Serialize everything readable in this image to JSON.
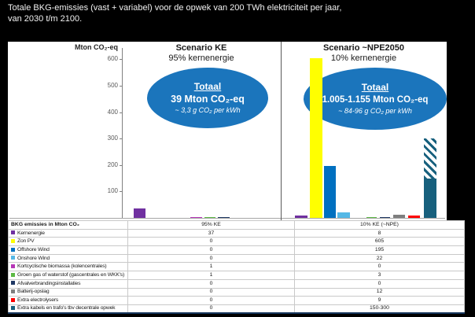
{
  "title": {
    "line1": "Totale BKG-emissies (vast + variabel) voor de opwek van 200 TWh elektriciteit per jaar,",
    "line2": "van 2030 t/m 2100."
  },
  "chart_data": {
    "type": "bar",
    "ylabel": "Mton CO₂-eq",
    "ylim": [
      0,
      620
    ],
    "yticks": [
      100,
      200,
      300,
      400,
      500,
      600
    ],
    "grid": false,
    "legend_position": "table-below",
    "panels": [
      {
        "name": "Scenario KE",
        "subtitle": "95% kernenergie",
        "total_label": "Totaal",
        "total_value": "39 Mton CO₂-eq",
        "per_kwh": "~ 3,3 g CO₂ per kWh"
      },
      {
        "name": "Scenario ~NPE2050",
        "subtitle": "10% kernenergie",
        "total_label": "Totaal",
        "total_value": "1.005-1.155 Mton CO₂-eq",
        "per_kwh": "~ 84-96 g CO₂ per kWh"
      }
    ],
    "categories": [
      "Kernenergie",
      "Zon PV",
      "Offshore Wind",
      "Onshore Wind",
      "Kortcyclische biomassa (kolencentrales)",
      "Groen gas of waterstof (gascentrales en WKK's)",
      "Afvalverbrandingsinstallaties",
      "Batterij-opslag",
      "Extra electrolysers",
      "Extra kabels en trafo's tbv decentrale opwek"
    ],
    "colors": [
      "#7030A0",
      "#FFFF00",
      "#0070C0",
      "#55B8E6",
      "#B636B6",
      "#5CB944",
      "#1F3864",
      "#7F7F7F",
      "#FF0000",
      "#17607D"
    ],
    "series": [
      {
        "name": "95% KE",
        "values": [
          37,
          0,
          0,
          0,
          1,
          1,
          0,
          0,
          0,
          0
        ]
      },
      {
        "name": "10% KE (~NPE)",
        "values": [
          8,
          605,
          195,
          22,
          0,
          3,
          0,
          12,
          9,
          150
        ],
        "extra_kabels_max": 300
      }
    ]
  },
  "table": {
    "header": [
      "BKG emissies in Mton CO₂",
      "95% KE",
      "10% KE (~NPE)"
    ],
    "rows": [
      {
        "label": "Kernenergie",
        "color": "#7030A0",
        "ke": "37",
        "npe": "8"
      },
      {
        "label": "Zon PV",
        "color": "#FFFF00",
        "ke": "0",
        "npe": "605"
      },
      {
        "label": "Offshore Wind",
        "color": "#0070C0",
        "ke": "0",
        "npe": "195"
      },
      {
        "label": "Onshore Wind",
        "color": "#55B8E6",
        "ke": "0",
        "npe": "22"
      },
      {
        "label": "Kortcyclische biomassa (kolencentrales)",
        "color": "#B636B6",
        "ke": "1",
        "npe": "0"
      },
      {
        "label": "Groen gas of waterstof (gascentrales en WKK's)",
        "color": "#5CB944",
        "ke": "1",
        "npe": "3"
      },
      {
        "label": "Afvalverbrandingsinstallaties",
        "color": "#1F3864",
        "ke": "0",
        "npe": "0"
      },
      {
        "label": "Batterij-opslag",
        "color": "#7F7F7F",
        "ke": "0",
        "npe": "12"
      },
      {
        "label": "Extra electrolysers",
        "color": "#FF0000",
        "ke": "0",
        "npe": "9"
      },
      {
        "label": "Extra kabels en trafo's tbv decentrale opwek",
        "color": "#17607D",
        "ke": "0",
        "npe": "150-300"
      }
    ]
  }
}
